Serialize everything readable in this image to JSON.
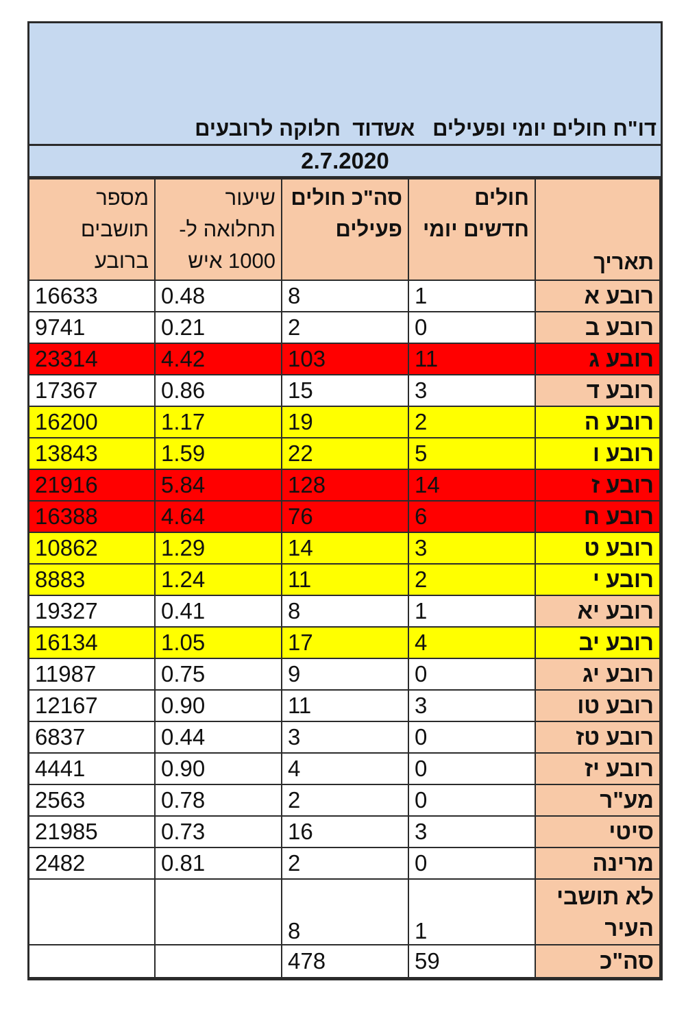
{
  "report": {
    "title": "דו\"ח חולים יומי ופעילים   אשדוד  חלוקה לרובעים",
    "date": "2.7.2020"
  },
  "columns": {
    "name": "תאריך",
    "new": "חולים חדשים יומי",
    "active": "סה\"כ חולים פעילים",
    "rate": "שיעור תחלואה ל- 1000 איש",
    "population": "מספר תושבים ברובע"
  },
  "colors": {
    "header": "#f8c9a7",
    "banner": "#c6d9f0",
    "red": "#ff0000",
    "yellow": "#ffff00"
  },
  "rows": [
    {
      "name": "רובע א",
      "new": "1",
      "active": "8",
      "rate": "0.48",
      "population": "16633",
      "level": "white"
    },
    {
      "name": "רובע ב",
      "new": "0",
      "active": "2",
      "rate": "0.21",
      "population": "9741",
      "level": "white"
    },
    {
      "name": "רובע ג",
      "new": "11",
      "active": "103",
      "rate": "4.42",
      "population": "23314",
      "level": "red"
    },
    {
      "name": "רובע ד",
      "new": "3",
      "active": "15",
      "rate": "0.86",
      "population": "17367",
      "level": "white"
    },
    {
      "name": "רובע ה",
      "new": "2",
      "active": "19",
      "rate": "1.17",
      "population": "16200",
      "level": "yellow"
    },
    {
      "name": "רובע ו",
      "new": "5",
      "active": "22",
      "rate": "1.59",
      "population": "13843",
      "level": "yellow"
    },
    {
      "name": "רובע ז",
      "new": "14",
      "active": "128",
      "rate": "5.84",
      "population": "21916",
      "level": "red"
    },
    {
      "name": "רובע ח",
      "new": "6",
      "active": "76",
      "rate": "4.64",
      "population": "16388",
      "level": "red"
    },
    {
      "name": "רובע ט",
      "new": "3",
      "active": "14",
      "rate": "1.29",
      "population": "10862",
      "level": "yellow"
    },
    {
      "name": "רובע י",
      "new": "2",
      "active": "11",
      "rate": "1.24",
      "population": "8883",
      "level": "yellow"
    },
    {
      "name": "רובע יא",
      "new": "1",
      "active": "8",
      "rate": "0.41",
      "population": "19327",
      "level": "white"
    },
    {
      "name": "רובע יב",
      "new": "4",
      "active": "17",
      "rate": "1.05",
      "population": "16134",
      "level": "yellow"
    },
    {
      "name": "רובע יג",
      "new": "0",
      "active": "9",
      "rate": "0.75",
      "population": "11987",
      "level": "white"
    },
    {
      "name": "רובע טו",
      "new": "3",
      "active": "11",
      "rate": "0.90",
      "population": "12167",
      "level": "white"
    },
    {
      "name": "רובע טז",
      "new": "0",
      "active": "3",
      "rate": "0.44",
      "population": "6837",
      "level": "white"
    },
    {
      "name": "רובע יז",
      "new": "0",
      "active": "4",
      "rate": "0.90",
      "population": "4441",
      "level": "white"
    },
    {
      "name": "מע\"ר",
      "new": "0",
      "active": "2",
      "rate": "0.78",
      "population": "2563",
      "level": "white"
    },
    {
      "name": "סיטי",
      "new": "3",
      "active": "16",
      "rate": "0.73",
      "population": "21985",
      "level": "white"
    },
    {
      "name": "מרינה",
      "new": "0",
      "active": "2",
      "rate": "0.81",
      "population": "2482",
      "level": "white"
    },
    {
      "name": "לא תושבי העיר",
      "new": "1",
      "active": "8",
      "rate": "",
      "population": "",
      "level": "white",
      "tall": true
    },
    {
      "name": "סה\"כ",
      "new": "59",
      "active": "478",
      "rate": "",
      "population": "",
      "level": "white"
    }
  ]
}
